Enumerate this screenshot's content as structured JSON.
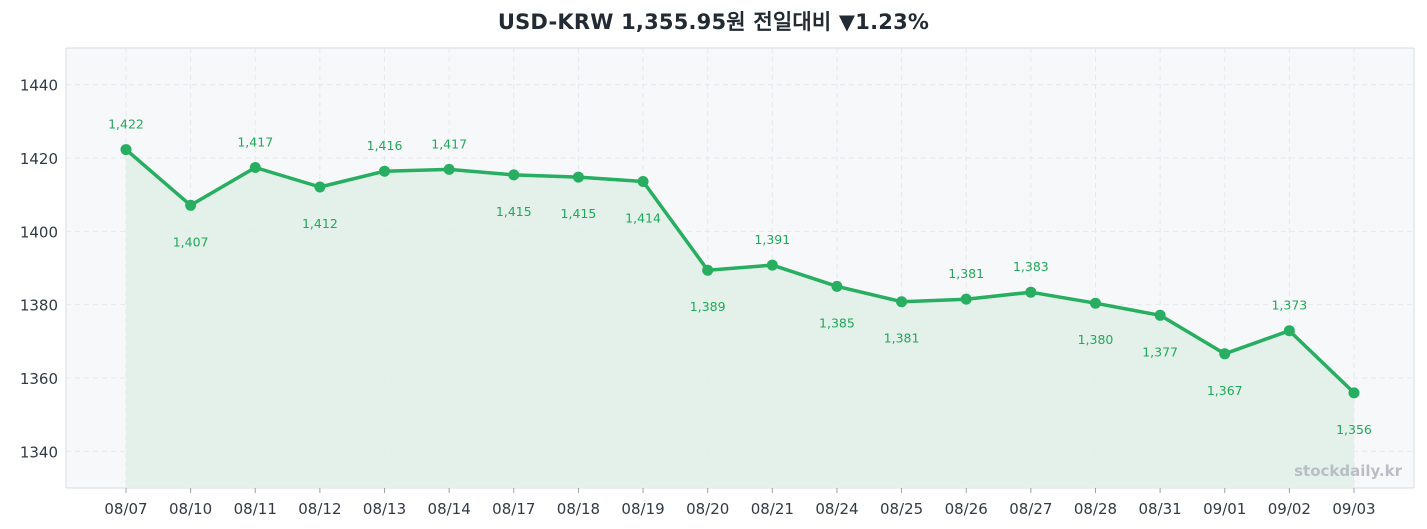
{
  "chart_data": {
    "type": "line",
    "title": "USD-KRW  1,355.95원  전일대비 ▼1.23%",
    "categories": [
      "08/07",
      "08/10",
      "08/11",
      "08/12",
      "08/13",
      "08/14",
      "08/17",
      "08/18",
      "08/19",
      "08/20",
      "08/21",
      "08/24",
      "08/25",
      "08/26",
      "08/27",
      "08/28",
      "08/31",
      "09/01",
      "09/02",
      "09/03"
    ],
    "series": [
      {
        "values": [
          1422.3,
          1407.1,
          1417.4,
          1412.1,
          1416.4,
          1416.9,
          1415.4,
          1414.8,
          1413.6,
          1389.4,
          1390.8,
          1385.0,
          1380.8,
          1381.5,
          1383.4,
          1380.4,
          1377.1,
          1366.6,
          1372.9,
          1355.95
        ],
        "labels": [
          "1,422",
          "1,407",
          "1,417",
          "1,412",
          "1,416",
          "1,417",
          "1,415",
          "1,415",
          "1,414",
          "1,389",
          "1,391",
          "1,385",
          "1,381",
          "1,381",
          "1,383",
          "1,380",
          "1,377",
          "1,367",
          "1,373",
          "1,356"
        ],
        "color": "#27ae60",
        "fill": "#dff0e6"
      }
    ],
    "ylim": [
      1330,
      1450
    ],
    "yticks": [
      1340,
      1360,
      1380,
      1400,
      1420,
      1440
    ],
    "ytick_labels": [
      "1340",
      "1360",
      "1380",
      "1400",
      "1420",
      "1440"
    ],
    "xlabel": "",
    "ylabel": "",
    "grid": true,
    "watermark": "stockdaily.kr",
    "colors": {
      "plot_bg": "#f7f8fa",
      "grid": "#e6e8ec",
      "frame": "#d8dbe0"
    }
  }
}
